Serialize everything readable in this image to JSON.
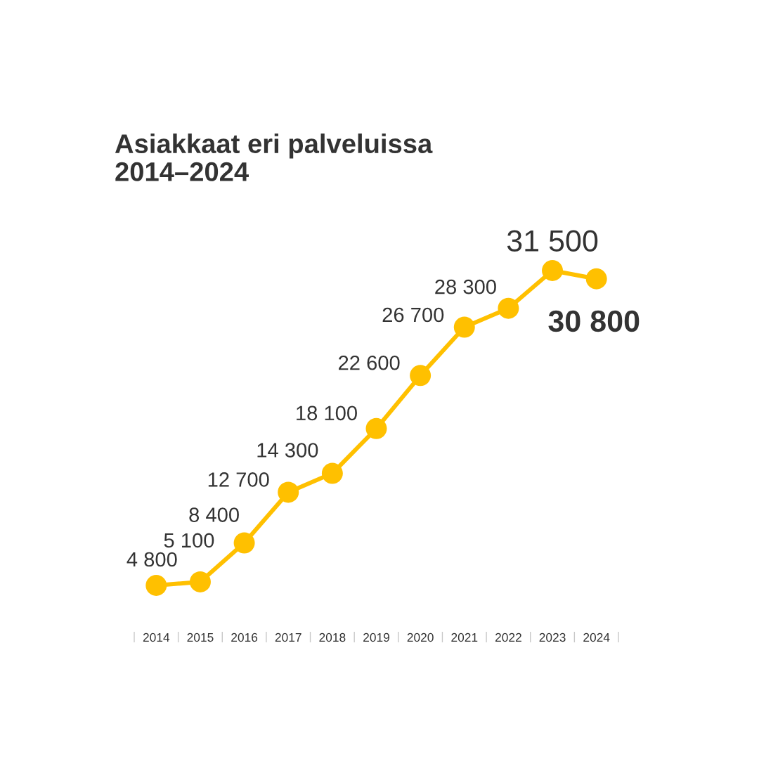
{
  "chart_data": {
    "type": "line",
    "title": "Asiakkaat eri palveluissa 2014–2024",
    "categories": [
      "2014",
      "2015",
      "2016",
      "2017",
      "2018",
      "2019",
      "2020",
      "2021",
      "2022",
      "2023",
      "2024"
    ],
    "values": [
      4800,
      5100,
      8400,
      12700,
      14300,
      18100,
      22600,
      26700,
      28300,
      31500,
      30800
    ],
    "value_labels": [
      "4 800",
      "5 100",
      "8 400",
      "12 700",
      "14 300",
      "18 100",
      "22 600",
      "26 700",
      "28 300",
      "31 500",
      "30 800"
    ],
    "color": "#ffc000",
    "marker": "circle",
    "line_style": "solid",
    "tick_labels": "x"
  }
}
